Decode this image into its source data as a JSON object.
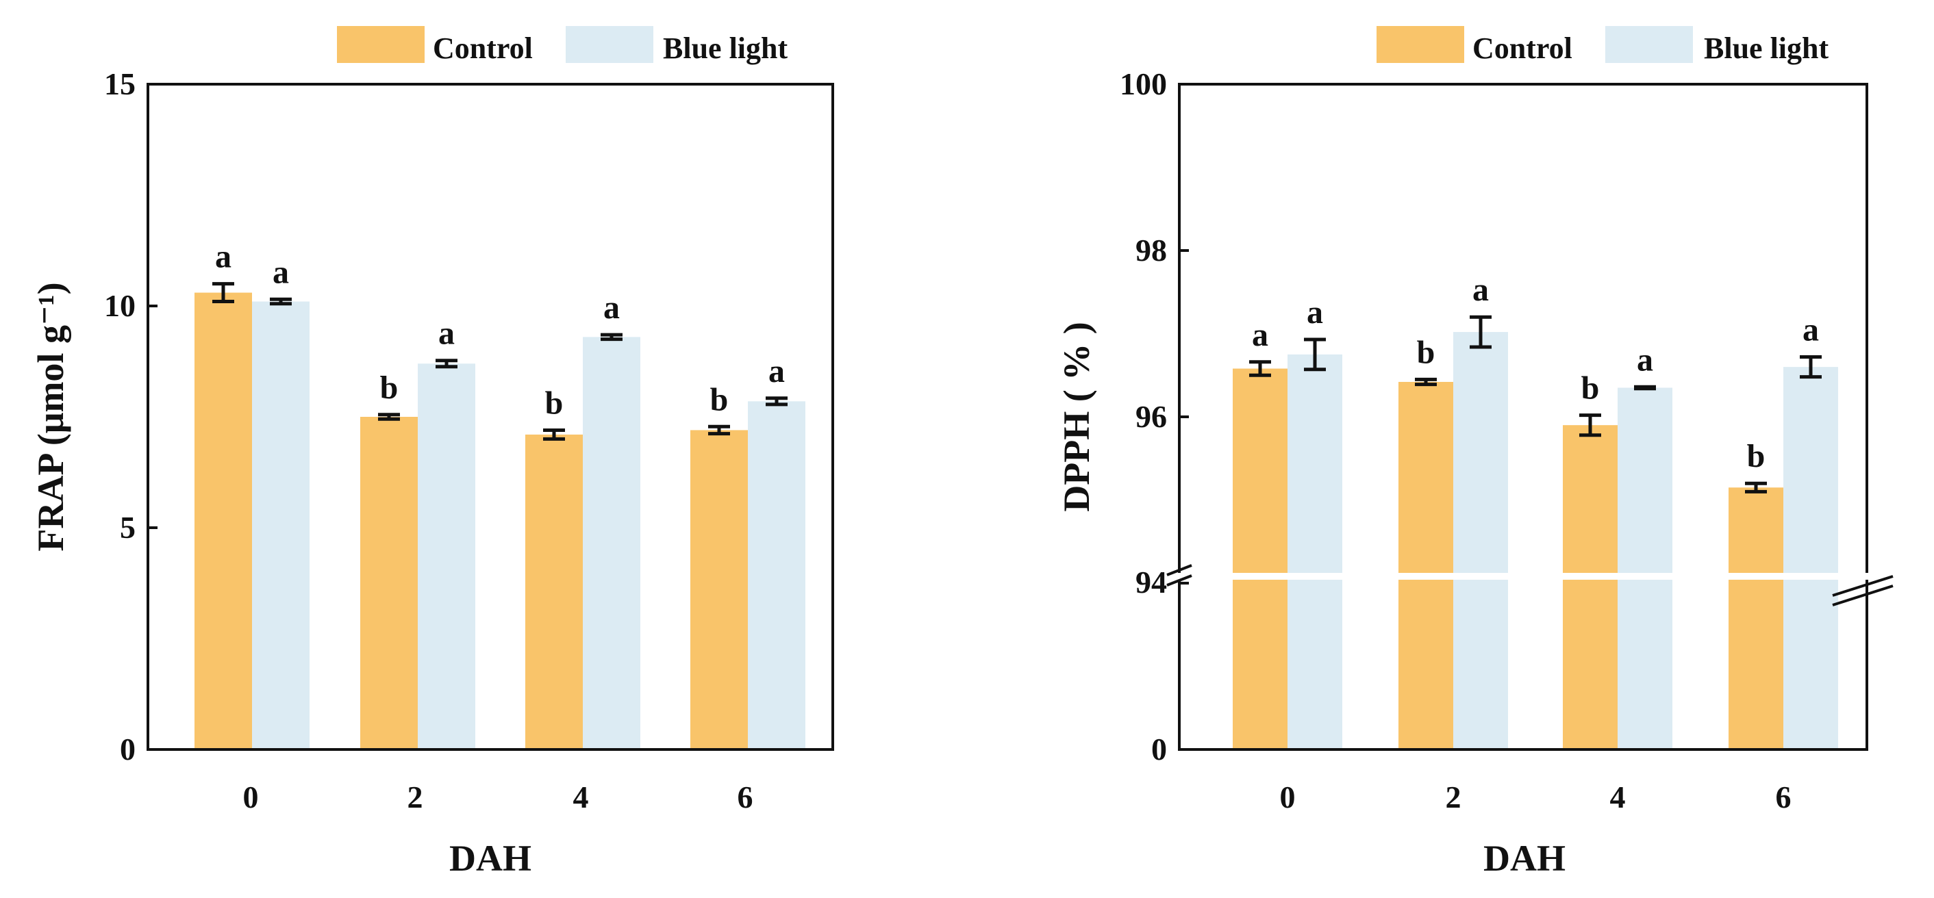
{
  "colors": {
    "control": "#F9C46A",
    "blue_light": "#DCEBF3",
    "axis": "#111111"
  },
  "chart_data": [
    {
      "type": "bar",
      "title": "",
      "xlabel": "DAH",
      "ylabel": "FRAP (μmol g⁻¹)",
      "ylim": [
        0,
        15
      ],
      "yticks": [
        "0",
        "5",
        "10",
        "15"
      ],
      "categories": [
        "0",
        "2",
        "4",
        "6"
      ],
      "legend": {
        "placement": "top-right",
        "entries": [
          "Control",
          "Blue light"
        ]
      },
      "grid": false,
      "series": [
        {
          "name": "Control",
          "values": [
            10.3,
            7.5,
            7.1,
            7.2
          ],
          "errors": [
            0.2,
            0.05,
            0.1,
            0.08
          ],
          "letters": [
            "a",
            "b",
            "b",
            "b"
          ]
        },
        {
          "name": "Blue light",
          "values": [
            10.1,
            8.7,
            9.3,
            7.85
          ],
          "errors": [
            0.05,
            0.07,
            0.05,
            0.07
          ],
          "letters": [
            "a",
            "a",
            "a",
            "a"
          ]
        }
      ]
    },
    {
      "type": "bar",
      "title": "",
      "xlabel": "DAH",
      "ylabel": "DPPH ( % )",
      "ylim": [
        0,
        100
      ],
      "axis_break": [
        0,
        94
      ],
      "yticks": [
        "0",
        "94",
        "96",
        "98",
        "100"
      ],
      "categories": [
        "0",
        "2",
        "4",
        "6"
      ],
      "legend": {
        "placement": "top-right",
        "entries": [
          "Control",
          "Blue light"
        ]
      },
      "grid": false,
      "series": [
        {
          "name": "Control",
          "values": [
            96.58,
            96.42,
            95.9,
            95.15
          ],
          "errors": [
            0.08,
            0.03,
            0.12,
            0.05
          ],
          "letters": [
            "a",
            "b",
            "b",
            "b"
          ]
        },
        {
          "name": "Blue light",
          "values": [
            96.75,
            97.02,
            96.35,
            96.6
          ],
          "errors": [
            0.18,
            0.18,
            0.01,
            0.12
          ],
          "letters": [
            "a",
            "a",
            "a",
            "a"
          ]
        }
      ]
    }
  ]
}
